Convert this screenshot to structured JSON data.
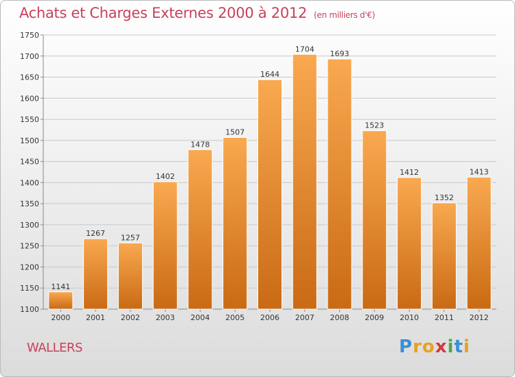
{
  "header": {
    "title": "Achats et Charges Externes 2000 à 2012",
    "subtitle": "(en milliers d'€)"
  },
  "footer": {
    "city": "WALLERS",
    "brand": "Proxiti"
  },
  "colors": {
    "title": "#c8415a",
    "bar_light": "#f9a950",
    "bar_dark": "#c96a14",
    "grid": "#c8c8c8"
  },
  "chart_data": {
    "type": "bar",
    "title": "Achats et Charges Externes 2000 à 2012",
    "xlabel": "",
    "ylabel": "",
    "categories": [
      "2000",
      "2001",
      "2002",
      "2003",
      "2004",
      "2005",
      "2006",
      "2007",
      "2008",
      "2009",
      "2010",
      "2011",
      "2012"
    ],
    "values": [
      1141,
      1267,
      1257,
      1402,
      1478,
      1507,
      1644,
      1704,
      1693,
      1523,
      1412,
      1352,
      1413
    ],
    "ylim": [
      1100,
      1750
    ],
    "yticks": [
      1100,
      1150,
      1200,
      1250,
      1300,
      1350,
      1400,
      1450,
      1500,
      1550,
      1600,
      1650,
      1700,
      1750
    ],
    "grid": true,
    "legend": "none"
  }
}
